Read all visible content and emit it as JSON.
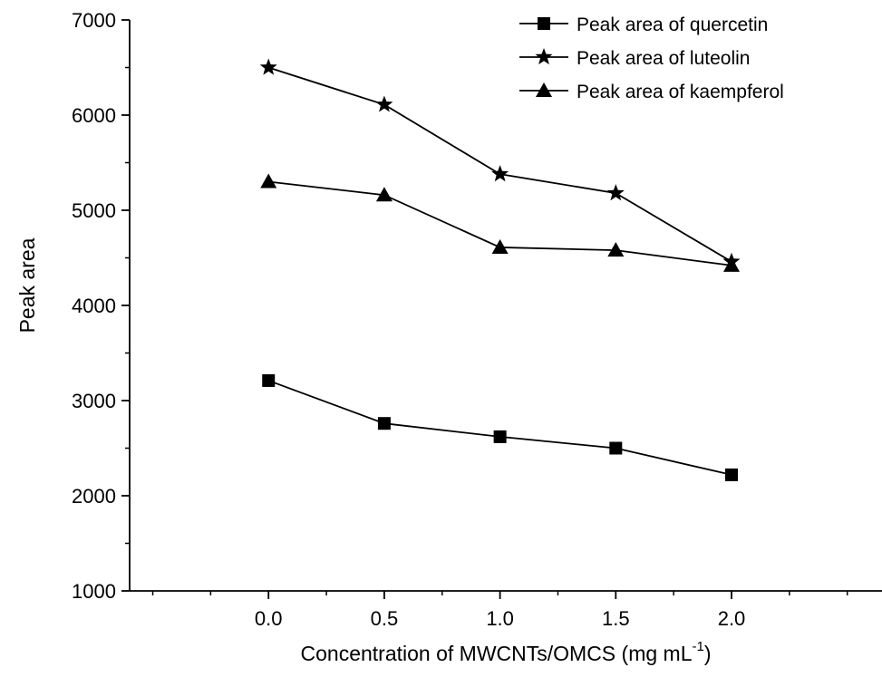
{
  "chart_data": {
    "type": "line",
    "title": "",
    "xlabel": "Concentration of MWCNTs/OMCS (mg mL",
    "xlabel_sup": "-1",
    "xlabel_close": ")",
    "ylabel": "Peak area",
    "x": [
      0.0,
      0.5,
      1.0,
      1.5,
      2.0
    ],
    "x_tick_labels": [
      "0.0",
      "0.5",
      "1.0",
      "1.5",
      "2.0"
    ],
    "y_tick_labels": [
      "1000",
      "2000",
      "3000",
      "4000",
      "5000",
      "6000",
      "7000"
    ],
    "xlim": [
      -0.6,
      2.65
    ],
    "ylim": [
      1000,
      7000
    ],
    "legend_position": "top-right",
    "grid": false,
    "series": [
      {
        "name": "Peak area of quercetin",
        "marker": "square",
        "values": [
          3210,
          2760,
          2620,
          2500,
          2220
        ]
      },
      {
        "name": "Peak area of luteolin",
        "marker": "star",
        "values": [
          6500,
          6110,
          5380,
          5180,
          4460
        ]
      },
      {
        "name": "Peak area of kaempferol",
        "marker": "triangle",
        "values": [
          5300,
          5160,
          4610,
          4580,
          4420
        ]
      }
    ]
  }
}
